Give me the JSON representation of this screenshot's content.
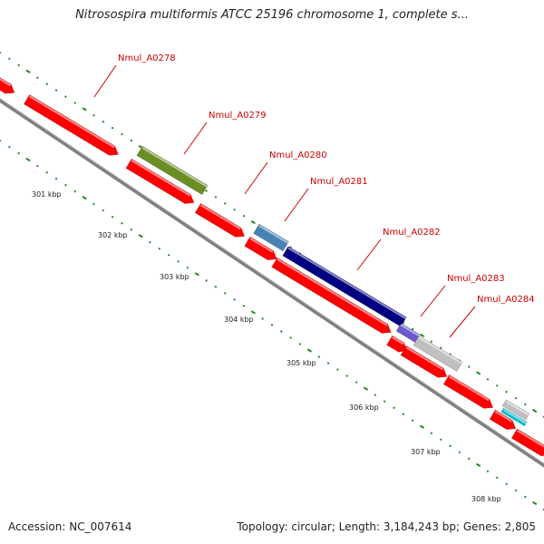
{
  "header": {
    "title": "Nitrosospira multiformis ATCC 25196 chromosome 1, complete s..."
  },
  "footer": {
    "accession": "Accession: NC_007614",
    "topology": "Topology: circular; Length: 3,184,243 bp; Genes: 2,805"
  },
  "axis_labels": [
    "301 kbp",
    "302 kbp",
    "303 kbp",
    "304 kbp",
    "305 kbp",
    "306 kbp",
    "307 kbp",
    "308 kbp"
  ],
  "gene_labels": [
    "Nmul_A0278",
    "Nmul_A0279",
    "Nmul_A0280",
    "Nmul_A0281",
    "Nmul_A0282",
    "Nmul_A0283",
    "Nmul_A0284"
  ],
  "colors": {
    "gene_red": "#ff0000",
    "gene_green": "#6b8e23",
    "gene_blue_light": "#4682b4",
    "gene_navy": "#000080",
    "gene_purple": "#6a5acd",
    "gene_grey": "#c0c0c0",
    "gene_cyan": "#00bcd4",
    "backbone": "#808080",
    "tick": "#228b22",
    "label": "#cc0000"
  }
}
